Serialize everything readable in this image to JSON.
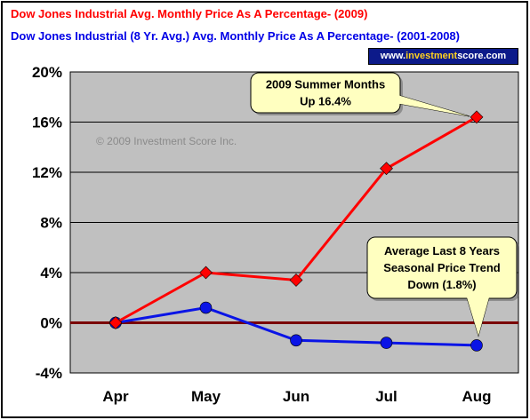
{
  "titles": {
    "line1": "Dow Jones Industrial Avg. Monthly Price As A Percentage- (2009)",
    "line2": "Dow Jones Industrial (8 Yr. Avg.) Avg. Monthly Price As A Percentage- (2001-2008)"
  },
  "badge": {
    "prefix": "www.",
    "highlight": "investment",
    "suffix": "score.com"
  },
  "watermark": "© 2009 Investment Score Inc.",
  "annotations": {
    "summer": [
      "2009 Summer Months",
      "Up 16.4%"
    ],
    "average": [
      "Average Last 8 Years",
      "Seasonal Price Trend",
      "Down (1.8%)"
    ]
  },
  "colors": {
    "series_2009": "#ff0000",
    "series_avg": "#0a14e6",
    "plot_bg": "#c0c0c0",
    "zero_line": "#7a0000",
    "title_2009": "#ff0000",
    "title_avg": "#0000e6",
    "callout_bg": "#ffffc0"
  },
  "chart_data": {
    "type": "line",
    "categories": [
      "Apr",
      "May",
      "Jun",
      "Jul",
      "Aug"
    ],
    "series": [
      {
        "name": "Dow Jones Industrial Avg. Monthly Price As A Percentage- (2009)",
        "values": [
          0.0,
          4.0,
          3.4,
          12.3,
          16.4
        ],
        "marker": "diamond"
      },
      {
        "name": "Dow Jones Industrial (8 Yr. Avg.) Avg. Monthly Price As A Percentage- (2001-2008)",
        "values": [
          0.0,
          1.2,
          -1.4,
          -1.6,
          -1.8
        ],
        "marker": "circle"
      }
    ],
    "yticks": [
      "20%",
      "16%",
      "12%",
      "8%",
      "4%",
      "0%",
      "-4%"
    ],
    "ytick_values": [
      20,
      16,
      12,
      8,
      4,
      0,
      -4
    ],
    "ylim": [
      -4,
      20
    ],
    "grid": true,
    "xlabel": "",
    "ylabel": ""
  }
}
